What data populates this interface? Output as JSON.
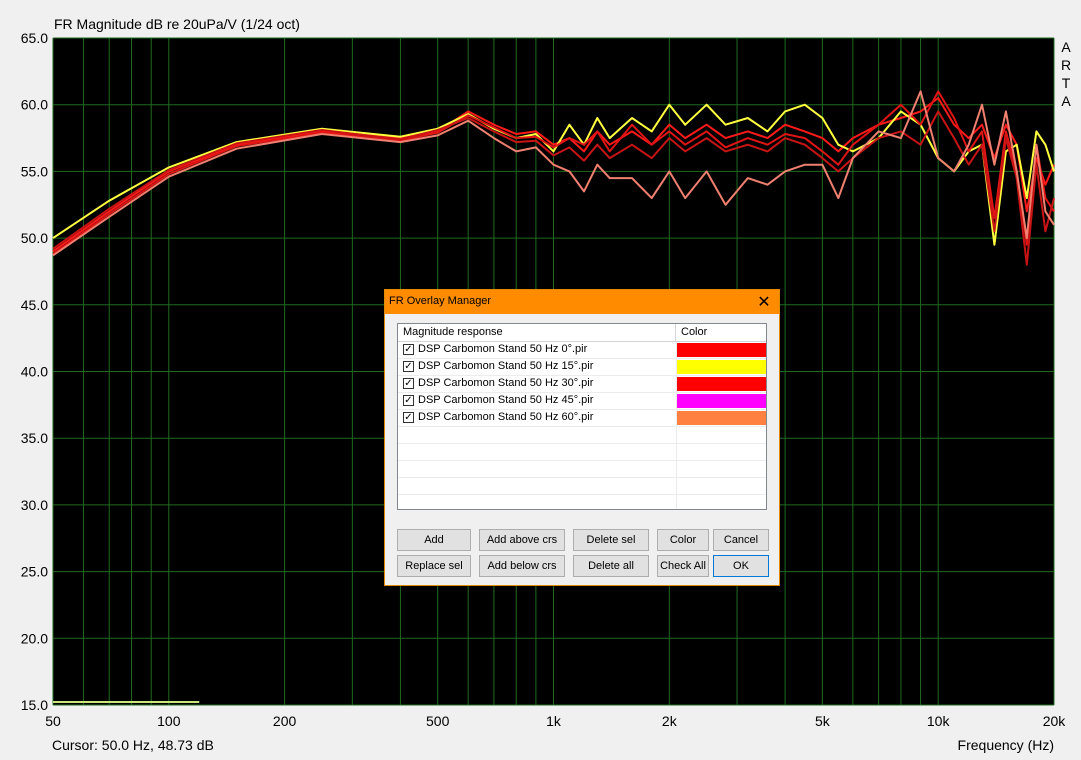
{
  "title": "FR Magnitude dB re 20uPa/V (1/24 oct)",
  "logo": [
    "A",
    "R",
    "T",
    "A"
  ],
  "cursor_readout": "Cursor: 50.0 Hz, 48.73 dB",
  "x_axis_label": "Frequency (Hz)",
  "colors": {
    "plot_background": "#000000",
    "grid": "#1f6b1f",
    "curve_0deg": "#ff1a1a",
    "curve_15deg": "#ffff40",
    "curve_30deg": "#e01414",
    "curve_45deg": "#c81414",
    "curve_60deg": "#f08070"
  },
  "chart_data": {
    "type": "line",
    "title": "FR Magnitude dB re 20uPa/V (1/24 oct)",
    "xlabel": "Frequency (Hz)",
    "ylabel": "",
    "xscale": "log",
    "xlim": [
      50,
      20000
    ],
    "ylim": [
      15,
      65
    ],
    "grid": true,
    "y_ticks": [
      "65.0",
      "60.0",
      "55.0",
      "50.0",
      "45.0",
      "40.0",
      "35.0",
      "30.0",
      "25.0",
      "20.0",
      "15.0"
    ],
    "x_ticks": [
      {
        "v": 50,
        "label": "50"
      },
      {
        "v": 100,
        "label": "100"
      },
      {
        "v": 200,
        "label": "200"
      },
      {
        "v": 500,
        "label": "500"
      },
      {
        "v": 1000,
        "label": "1k"
      },
      {
        "v": 2000,
        "label": "2k"
      },
      {
        "v": 5000,
        "label": "5k"
      },
      {
        "v": 10000,
        "label": "10k"
      },
      {
        "v": 20000,
        "label": "20k"
      }
    ],
    "series": [
      {
        "color": "#ff1a1a",
        "x": [
          50,
          70,
          100,
          150,
          250,
          400,
          500,
          600,
          700,
          800,
          900,
          1000,
          1100,
          1200,
          1300,
          1400,
          1600,
          1800,
          2000,
          2200,
          2500,
          2800,
          3200,
          3600,
          4000,
          4500,
          5000,
          5500,
          6000,
          7000,
          8000,
          9000,
          10000,
          11000,
          12000,
          13000,
          14000,
          15000,
          16000,
          17000,
          18000,
          19000,
          20000
        ],
        "y": [
          49.0,
          52.0,
          55.0,
          57.0,
          58.0,
          57.5,
          58.0,
          59.5,
          58.5,
          57.8,
          58.0,
          57.0,
          57.5,
          56.5,
          58.0,
          57.0,
          58.0,
          57.0,
          58.5,
          57.5,
          58.5,
          57.5,
          58.0,
          57.5,
          58.5,
          58.0,
          57.5,
          56.5,
          57.5,
          58.5,
          59.0,
          59.5,
          60.5,
          58.5,
          57.5,
          58.5,
          56.0,
          58.5,
          57.0,
          52.0,
          56.0,
          54.0,
          55.5
        ]
      },
      {
        "color": "#ffff40",
        "x": [
          50,
          70,
          100,
          150,
          250,
          400,
          500,
          600,
          700,
          800,
          900,
          1000,
          1100,
          1200,
          1300,
          1400,
          1600,
          1800,
          2000,
          2200,
          2500,
          2800,
          3200,
          3600,
          4000,
          4500,
          5000,
          5500,
          6000,
          7000,
          8000,
          9000,
          10000,
          11000,
          12000,
          13000,
          14000,
          15000,
          16000,
          17000,
          18000,
          19000,
          20000
        ],
        "y": [
          50.0,
          52.8,
          55.3,
          57.2,
          58.2,
          57.6,
          58.2,
          59.3,
          58.2,
          57.5,
          57.8,
          56.5,
          58.5,
          57.0,
          59.0,
          57.5,
          59.0,
          58.0,
          60.0,
          58.5,
          60.0,
          58.5,
          59.0,
          58.0,
          59.5,
          60.0,
          59.0,
          57.0,
          56.5,
          57.5,
          59.5,
          58.5,
          56.0,
          55.0,
          56.5,
          57.0,
          49.5,
          56.5,
          57.0,
          53.0,
          58.0,
          57.0,
          55.0
        ]
      },
      {
        "color": "#e01414",
        "x": [
          50,
          70,
          100,
          150,
          250,
          400,
          500,
          600,
          700,
          800,
          900,
          1000,
          1100,
          1200,
          1300,
          1400,
          1600,
          1800,
          2000,
          2200,
          2500,
          2800,
          3200,
          3600,
          4000,
          4500,
          5000,
          5500,
          6000,
          7000,
          8000,
          9000,
          10000,
          11000,
          12000,
          13000,
          14000,
          15000,
          16000,
          17000,
          18000,
          19000,
          20000
        ],
        "y": [
          48.8,
          51.8,
          54.8,
          56.9,
          57.9,
          57.3,
          57.9,
          59.2,
          58.3,
          57.5,
          57.6,
          56.8,
          57.5,
          57.0,
          58.0,
          56.5,
          58.5,
          57.0,
          58.0,
          57.0,
          58.0,
          56.8,
          57.5,
          57.0,
          57.8,
          57.5,
          56.5,
          55.5,
          57.0,
          58.5,
          60.0,
          58.5,
          61.0,
          59.0,
          56.5,
          58.0,
          51.5,
          58.0,
          55.0,
          49.5,
          57.0,
          53.0,
          52.0
        ]
      },
      {
        "color": "#c81414",
        "x": [
          50,
          70,
          100,
          150,
          250,
          400,
          500,
          600,
          700,
          800,
          900,
          1000,
          1100,
          1200,
          1300,
          1400,
          1600,
          1800,
          2000,
          2200,
          2500,
          2800,
          3200,
          3600,
          4000,
          4500,
          5000,
          5500,
          6000,
          7000,
          8000,
          9000,
          10000,
          11000,
          12000,
          13000,
          14000,
          15000,
          16000,
          17000,
          18000,
          19000,
          20000
        ],
        "y": [
          49.2,
          52.2,
          55.1,
          57.1,
          58.1,
          57.4,
          58.1,
          59.0,
          58.0,
          57.2,
          57.3,
          56.2,
          56.8,
          55.8,
          57.0,
          56.0,
          57.0,
          56.0,
          57.5,
          56.5,
          57.5,
          56.5,
          57.0,
          56.5,
          57.5,
          57.0,
          56.0,
          55.0,
          56.0,
          57.5,
          58.0,
          57.0,
          59.5,
          57.5,
          55.5,
          57.0,
          50.5,
          57.5,
          54.5,
          48.0,
          55.5,
          50.5,
          53.0
        ]
      },
      {
        "color": "#f08070",
        "x": [
          50,
          70,
          100,
          150,
          250,
          400,
          500,
          600,
          700,
          800,
          900,
          1000,
          1100,
          1200,
          1300,
          1400,
          1600,
          1800,
          2000,
          2200,
          2500,
          2800,
          3200,
          3600,
          4000,
          4500,
          5000,
          5500,
          6000,
          7000,
          8000,
          9000,
          10000,
          11000,
          12000,
          13000,
          14000,
          15000,
          16000,
          17000,
          18000,
          19000,
          20000
        ],
        "y": [
          48.7,
          51.6,
          54.6,
          56.7,
          57.8,
          57.2,
          57.7,
          58.8,
          57.5,
          56.5,
          56.8,
          55.5,
          55.0,
          53.5,
          55.5,
          54.5,
          54.5,
          53.0,
          55.0,
          53.0,
          55.0,
          52.5,
          54.5,
          54.0,
          55.0,
          55.5,
          55.5,
          53.0,
          56.0,
          58.0,
          57.5,
          61.0,
          56.0,
          55.0,
          57.0,
          60.0,
          55.5,
          59.5,
          55.0,
          50.0,
          57.0,
          52.0,
          51.0
        ]
      }
    ]
  },
  "dialog": {
    "title": "FR Overlay Manager",
    "close_glyph": "✕",
    "list_headers": {
      "name": "Magnitude response",
      "color": "Color"
    },
    "rows": [
      {
        "checked": true,
        "name": "DSP Carbomon Stand 50 Hz 0°.pir",
        "color": "#ff0000"
      },
      {
        "checked": true,
        "name": "DSP Carbomon Stand 50 Hz 15°.pir",
        "color": "#ffff00"
      },
      {
        "checked": true,
        "name": "DSP Carbomon Stand 50 Hz 30°.pir",
        "color": "#ff0000"
      },
      {
        "checked": true,
        "name": "DSP Carbomon Stand 50 Hz 45°.pir",
        "color": "#ff00ff"
      },
      {
        "checked": true,
        "name": "DSP Carbomon Stand 50 Hz 60°.pir",
        "color": "#ff8040"
      }
    ],
    "check_glyph": "✓",
    "buttons": {
      "add": "Add",
      "add_above": "Add above crs",
      "delete_sel": "Delete sel",
      "color": "Color",
      "cancel": "Cancel",
      "replace_sel": "Replace sel",
      "add_below": "Add below crs",
      "delete_all": "Delete all",
      "check_all": "Check All",
      "ok": "OK"
    }
  }
}
